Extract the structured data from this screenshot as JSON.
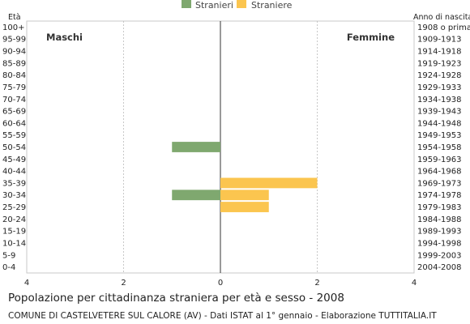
{
  "chart_data": {
    "type": "bar",
    "orientation": "horizontal-pyramid",
    "title": "Popolazione per cittadinanza straniera per età e sesso - 2008",
    "subtitle": "COMUNE DI CASTELVETERE SUL CALORE (AV) - Dati ISTAT al 1° gennaio - Elaborazione TUTTITALIA.IT",
    "left_axis_header": "Età",
    "right_axis_header": "Anno di nascita",
    "left_side_label": "Maschi",
    "right_side_label": "Femmine",
    "age_groups": [
      "100+",
      "95-99",
      "90-94",
      "85-89",
      "80-84",
      "75-79",
      "70-74",
      "65-69",
      "60-64",
      "55-59",
      "50-54",
      "45-49",
      "40-44",
      "35-39",
      "30-34",
      "25-29",
      "20-24",
      "15-19",
      "10-14",
      "5-9",
      "0-4"
    ],
    "birth_years": [
      "1908 o prima",
      "1909-1913",
      "1914-1918",
      "1919-1923",
      "1924-1928",
      "1929-1933",
      "1934-1938",
      "1939-1943",
      "1944-1948",
      "1949-1953",
      "1954-1958",
      "1959-1963",
      "1964-1968",
      "1969-1973",
      "1974-1978",
      "1979-1983",
      "1984-1988",
      "1989-1993",
      "1994-1998",
      "1999-2003",
      "2004-2008"
    ],
    "series": [
      {
        "name": "Stranieri",
        "color": "#7fa86f",
        "side": "left",
        "values": [
          0,
          0,
          0,
          0,
          0,
          0,
          0,
          0,
          0,
          0,
          1,
          0,
          0,
          0,
          1,
          0,
          0,
          0,
          0,
          0,
          0
        ]
      },
      {
        "name": "Straniere",
        "color": "#fbc54f",
        "side": "right",
        "values": [
          0,
          0,
          0,
          0,
          0,
          0,
          0,
          0,
          0,
          0,
          0,
          0,
          0,
          2,
          1,
          1,
          0,
          0,
          0,
          0,
          0
        ]
      }
    ],
    "x_ticks": [
      {
        "label": "4",
        "value": -4
      },
      {
        "label": "2",
        "value": -2
      },
      {
        "label": "0",
        "value": 0
      },
      {
        "label": "2",
        "value": 2
      },
      {
        "label": "4",
        "value": 4
      }
    ],
    "xlim": [
      -4,
      4
    ],
    "grid": "vertical dotted",
    "legend_position": "top-center"
  }
}
